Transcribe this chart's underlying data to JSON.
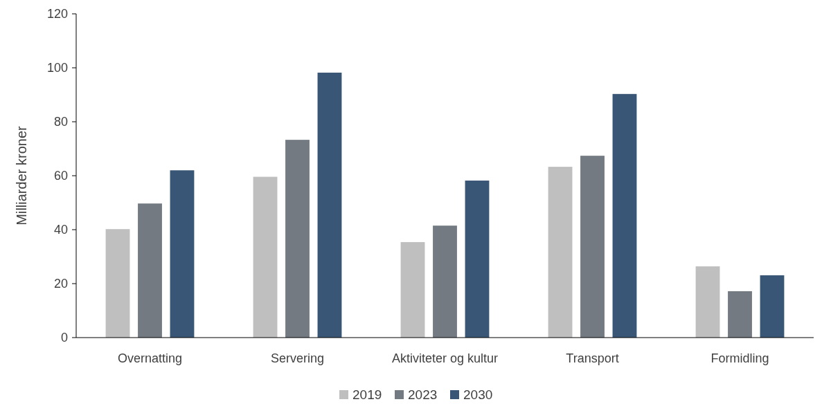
{
  "chart_data": {
    "type": "bar",
    "ylabel": "Milliarder kroner",
    "categories": [
      "Overnatting",
      "Servering",
      "Aktiviteter og kultur",
      "Transport",
      "Formidling"
    ],
    "series": [
      {
        "name": "2019",
        "color": "#bfbfbf",
        "values": [
          40.2,
          59.6,
          35.4,
          63.3,
          26.4
        ]
      },
      {
        "name": "2023",
        "color": "#737a82",
        "values": [
          49.7,
          73.3,
          41.5,
          67.4,
          17.2
        ]
      },
      {
        "name": "2030",
        "color": "#3a5676",
        "values": [
          62,
          98.2,
          58.2,
          90.3,
          23.1
        ]
      }
    ],
    "ylim": [
      0,
      120
    ],
    "yticks": [
      0,
      20,
      40,
      60,
      80,
      100,
      120
    ],
    "grid": false,
    "legend": "bottom"
  }
}
